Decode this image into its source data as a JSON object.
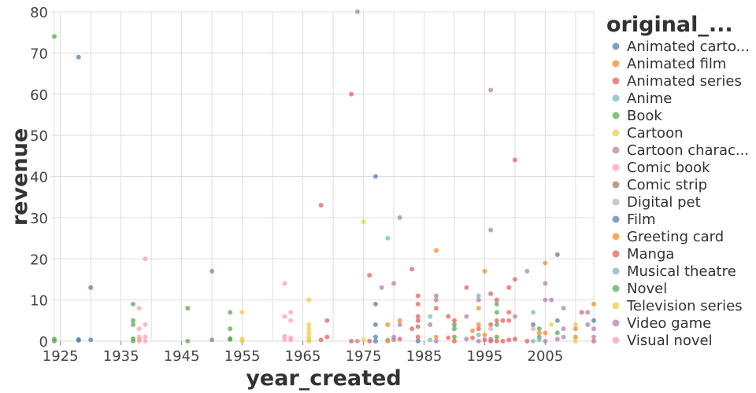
{
  "chart_data": {
    "type": "scatter",
    "xlabel": "year_created",
    "ylabel": "revenue",
    "xlim": [
      1924,
      2013
    ],
    "ylim": [
      0,
      80
    ],
    "x_ticks": [
      "1925",
      "1935",
      "1945",
      "1955",
      "1965",
      "1975",
      "1985",
      "1995",
      "2005"
    ],
    "x_tick_values": [
      1925,
      1935,
      1945,
      1955,
      1965,
      1975,
      1985,
      1995,
      2005
    ],
    "y_ticks": [
      "0",
      "10",
      "20",
      "30",
      "40",
      "50",
      "60",
      "70",
      "80"
    ],
    "y_tick_values": [
      0,
      10,
      20,
      30,
      40,
      50,
      60,
      70,
      80
    ],
    "grid": true,
    "legend": {
      "title": "original_...",
      "placement": "right",
      "entries": [
        "Animated carto...",
        "Animated film",
        "Animated series",
        "Anime",
        "Book",
        "Cartoon",
        "Cartoon charac...",
        "Comic book",
        "Comic strip",
        "Digital pet",
        "Film",
        "Greeting card",
        "Manga",
        "Musical theatre",
        "Novel",
        "Television series",
        "Video game",
        "Visual novel"
      ],
      "colors": [
        "#4c78a8",
        "#f58518",
        "#e45756",
        "#72b7b2",
        "#54a24b",
        "#eeca3b",
        "#b279a2",
        "#ff9da6",
        "#9d755d",
        "#bab0ac",
        "#4c78a8",
        "#f58518",
        "#e45756",
        "#72b7b2",
        "#54a24b",
        "#eeca3b",
        "#b279a2",
        "#ff9da6"
      ]
    },
    "points_format": [
      "year_created",
      "revenue",
      "category_index"
    ],
    "points": [
      [
        1924,
        74,
        4
      ],
      [
        1924,
        0.5,
        4
      ],
      [
        1924,
        0,
        14
      ],
      [
        1928,
        69,
        0
      ],
      [
        1928,
        0.4,
        10
      ],
      [
        1928,
        0.2,
        0
      ],
      [
        1930,
        13,
        0
      ],
      [
        1930,
        0.3,
        0
      ],
      [
        1937,
        9,
        4
      ],
      [
        1937,
        5,
        4
      ],
      [
        1937,
        4,
        14
      ],
      [
        1937,
        0.6,
        4
      ],
      [
        1937,
        0,
        14
      ],
      [
        1938,
        8,
        7
      ],
      [
        1938,
        3,
        17
      ],
      [
        1938,
        1,
        7
      ],
      [
        1938,
        0.5,
        17
      ],
      [
        1938,
        0,
        7
      ],
      [
        1939,
        20,
        17
      ],
      [
        1939,
        4,
        7
      ],
      [
        1939,
        1,
        17
      ],
      [
        1939,
        0,
        7
      ],
      [
        1946,
        8,
        4
      ],
      [
        1946,
        0,
        14
      ],
      [
        1950,
        17,
        8
      ],
      [
        1950,
        0.3,
        8
      ],
      [
        1953,
        7,
        4
      ],
      [
        1953,
        3,
        14
      ],
      [
        1953,
        0.6,
        14
      ],
      [
        1953,
        0.4,
        4
      ],
      [
        1955,
        7,
        5
      ],
      [
        1955,
        0.5,
        15
      ],
      [
        1955,
        0,
        5
      ],
      [
        1962,
        14,
        7
      ],
      [
        1962,
        6,
        17
      ],
      [
        1962,
        1.2,
        7
      ],
      [
        1962,
        0.4,
        17
      ],
      [
        1963,
        7,
        7
      ],
      [
        1963,
        5,
        17
      ],
      [
        1963,
        0.8,
        7
      ],
      [
        1963,
        0.3,
        17
      ],
      [
        1966,
        10,
        5
      ],
      [
        1966,
        4,
        15
      ],
      [
        1966,
        3,
        5
      ],
      [
        1966,
        2,
        15
      ],
      [
        1966,
        1,
        5
      ],
      [
        1966,
        0.3,
        15
      ],
      [
        1966,
        0,
        5
      ],
      [
        1968,
        33,
        2
      ],
      [
        1968,
        0.3,
        12
      ],
      [
        1969,
        5,
        2
      ],
      [
        1969,
        1,
        12
      ],
      [
        1973,
        60,
        2
      ],
      [
        1973,
        0,
        12
      ],
      [
        1974,
        80,
        6
      ],
      [
        1974,
        0,
        16
      ],
      [
        1975,
        29,
        5
      ],
      [
        1975,
        0.3,
        15
      ],
      [
        1976,
        16,
        2
      ],
      [
        1976,
        0,
        12
      ],
      [
        1977,
        40,
        0
      ],
      [
        1977,
        9,
        10
      ],
      [
        1977,
        4,
        0
      ],
      [
        1977,
        1,
        10
      ],
      [
        1977,
        0,
        0
      ],
      [
        1978,
        13,
        6
      ],
      [
        1979,
        25,
        3
      ],
      [
        1979,
        4,
        1
      ],
      [
        1979,
        0.3,
        3
      ],
      [
        1979,
        0,
        11
      ],
      [
        1980,
        14,
        6
      ],
      [
        1980,
        1,
        16
      ],
      [
        1980,
        0.3,
        6
      ],
      [
        1981,
        30,
        6
      ],
      [
        1981,
        5,
        1
      ],
      [
        1981,
        4,
        16
      ],
      [
        1981,
        0.5,
        2
      ],
      [
        1983,
        17.5,
        2
      ],
      [
        1983,
        3,
        12
      ],
      [
        1984,
        11,
        2
      ],
      [
        1984,
        9,
        12
      ],
      [
        1984,
        6,
        2
      ],
      [
        1984,
        5,
        12
      ],
      [
        1984,
        3.5,
        8
      ],
      [
        1984,
        1,
        2
      ],
      [
        1984,
        0,
        10
      ],
      [
        1986,
        6,
        3
      ],
      [
        1986,
        4,
        16
      ],
      [
        1986,
        0.3,
        13
      ],
      [
        1987,
        22,
        1
      ],
      [
        1987,
        11,
        6
      ],
      [
        1987,
        10,
        16
      ],
      [
        1987,
        8,
        2
      ],
      [
        1987,
        1,
        11
      ],
      [
        1987,
        0,
        6
      ],
      [
        1989,
        6,
        2
      ],
      [
        1989,
        0.8,
        12
      ],
      [
        1990,
        5,
        2
      ],
      [
        1990,
        4,
        4
      ],
      [
        1990,
        3,
        14
      ],
      [
        1990,
        1,
        4
      ],
      [
        1990,
        0,
        12
      ],
      [
        1992,
        13,
        2
      ],
      [
        1992,
        6,
        6
      ],
      [
        1992,
        0.5,
        16
      ],
      [
        1993,
        2.5,
        1
      ],
      [
        1993,
        0.8,
        2
      ],
      [
        1994,
        11,
        3
      ],
      [
        1994,
        10,
        6
      ],
      [
        1994,
        8,
        1
      ],
      [
        1994,
        4,
        11
      ],
      [
        1994,
        3,
        2
      ],
      [
        1994,
        1.5,
        13
      ],
      [
        1994,
        0,
        16
      ],
      [
        1995,
        17,
        1
      ],
      [
        1995,
        1.5,
        11
      ],
      [
        1995,
        0.3,
        2
      ],
      [
        1996,
        61,
        6
      ],
      [
        1996,
        27,
        16
      ],
      [
        1996,
        11.5,
        2
      ],
      [
        1996,
        4,
        12
      ],
      [
        1996,
        3,
        9
      ],
      [
        1996,
        0.5,
        6
      ],
      [
        1996,
        0,
        2
      ],
      [
        1997,
        10,
        2
      ],
      [
        1997,
        9,
        4
      ],
      [
        1997,
        7,
        14
      ],
      [
        1997,
        5,
        2
      ],
      [
        1997,
        4,
        4
      ],
      [
        1997,
        1,
        14
      ],
      [
        1997,
        0,
        12
      ],
      [
        1998,
        5,
        2
      ],
      [
        1998,
        0,
        12
      ],
      [
        1999,
        13,
        2
      ],
      [
        1999,
        7,
        12
      ],
      [
        1999,
        5,
        2
      ],
      [
        1999,
        0.3,
        12
      ],
      [
        2000,
        44,
        2
      ],
      [
        2000,
        15,
        12
      ],
      [
        2000,
        6,
        6
      ],
      [
        2000,
        0.5,
        2
      ],
      [
        2002,
        17,
        6
      ],
      [
        2002,
        0,
        12
      ],
      [
        2003,
        4,
        0
      ],
      [
        2003,
        7,
        3
      ],
      [
        2003,
        3,
        7
      ],
      [
        2003,
        0,
        13
      ],
      [
        2004,
        3,
        4
      ],
      [
        2004,
        1,
        14
      ],
      [
        2004,
        2,
        1
      ],
      [
        2004,
        0.3,
        3
      ],
      [
        2005,
        19,
        1
      ],
      [
        2005,
        14,
        6
      ],
      [
        2005,
        10,
        16
      ],
      [
        2005,
        2,
        11
      ],
      [
        2005,
        0,
        6
      ],
      [
        2006,
        10,
        6
      ],
      [
        2006,
        4,
        5
      ],
      [
        2007,
        21,
        0
      ],
      [
        2007,
        5,
        10
      ],
      [
        2007,
        2,
        4
      ],
      [
        2007,
        0.5,
        6
      ],
      [
        2008,
        8,
        6
      ],
      [
        2008,
        3,
        16
      ],
      [
        2008,
        1,
        6
      ],
      [
        2010,
        4,
        5
      ],
      [
        2010,
        3,
        1
      ],
      [
        2010,
        1,
        11
      ],
      [
        2010,
        0,
        15
      ],
      [
        2011,
        7,
        2
      ],
      [
        2012,
        7,
        6
      ],
      [
        2012,
        4,
        16
      ],
      [
        2013,
        9,
        1
      ],
      [
        2013,
        5,
        0
      ],
      [
        2013,
        3,
        6
      ],
      [
        2013,
        1,
        16
      ],
      [
        2013,
        0,
        12
      ]
    ]
  }
}
